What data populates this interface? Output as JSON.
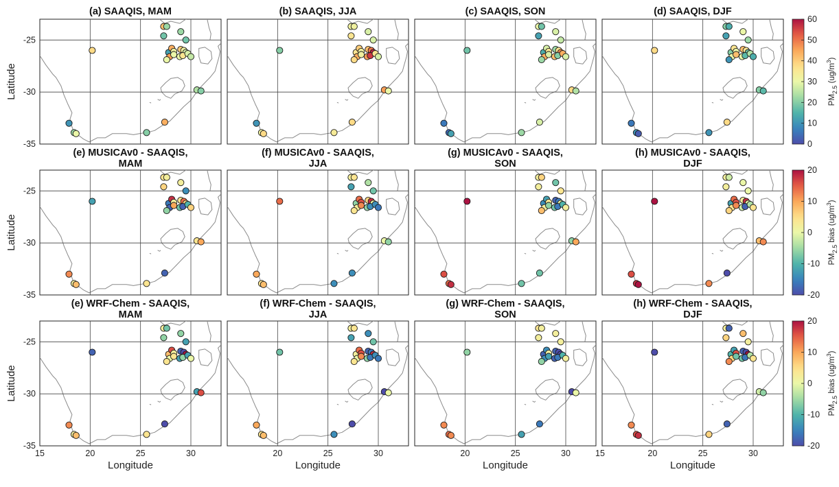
{
  "map": {
    "type": "map-panels",
    "xlim": [
      15,
      33
    ],
    "ylim": [
      -35,
      -23
    ],
    "x_ticks": [
      15,
      20,
      25,
      30
    ],
    "y_ticks": [
      -25,
      -30,
      -35
    ],
    "x_tick_labels": [
      "15",
      "20",
      "25",
      "30"
    ],
    "y_tick_labels": [
      "-25",
      "-30",
      "-35"
    ],
    "last_x_tick_label": "15",
    "xlabel": "Longitude",
    "ylabel": "Latitude",
    "rows": [
      {
        "titles": [
          "(a) SAAQIS, MAM",
          "(b) SAAQIS, JJA",
          "(c) SAAQIS, SON",
          "(d) SAAQIS, DJF"
        ],
        "colorbar": {
          "min": 0,
          "max": 60,
          "ticks": [
            "60",
            "50",
            "40",
            "30",
            "20",
            "10",
            "0"
          ],
          "label": "PM2.5 (ug/m3)"
        }
      },
      {
        "titles": [
          [
            "(e) MUSICAv0 - SAAQIS,",
            "MAM"
          ],
          [
            "(f) MUSICAv0 - SAAQIS,",
            "JJA"
          ],
          [
            "(g) MUSICAv0 - SAAQIS,",
            "SON"
          ],
          [
            "(h) MUSICAv0 - SAAQIS,",
            "DJF"
          ]
        ],
        "colorbar": {
          "min": -20,
          "max": 20,
          "ticks": [
            "20",
            "10",
            "0",
            "-10",
            "-20"
          ],
          "label": "PM2.5 bias (ug/m3)"
        }
      },
      {
        "titles": [
          [
            "(e) WRF-Chem - SAAQIS,",
            "MAM"
          ],
          [
            "(f) WRF-Chem - SAAQIS,",
            "JJA"
          ],
          [
            "(g) WRF-Chem - SAAQIS,",
            "SON"
          ],
          [
            "(h) WRF-Chem - SAAQIS,",
            "DJF"
          ]
        ],
        "colorbar": {
          "min": -20,
          "max": 20,
          "ticks": [
            "20",
            "10",
            "0",
            "-10",
            "-20"
          ],
          "label": "PM2.5 bias (ug/m3)"
        }
      }
    ],
    "sites": [
      {
        "lon": 27.3,
        "lat": -23.7
      },
      {
        "lon": 27.6,
        "lat": -23.7
      },
      {
        "lon": 29.0,
        "lat": -24.2
      },
      {
        "lon": 27.3,
        "lat": -24.6
      },
      {
        "lon": 29.5,
        "lat": -25.0
      },
      {
        "lon": 20.2,
        "lat": -26.0
      },
      {
        "lon": 27.8,
        "lat": -26.2
      },
      {
        "lon": 28.1,
        "lat": -25.8
      },
      {
        "lon": 28.3,
        "lat": -26.1
      },
      {
        "lon": 29.0,
        "lat": -25.9
      },
      {
        "lon": 29.3,
        "lat": -26.0
      },
      {
        "lon": 29.5,
        "lat": -26.2
      },
      {
        "lon": 27.9,
        "lat": -26.6
      },
      {
        "lon": 28.3,
        "lat": -26.4
      },
      {
        "lon": 28.9,
        "lat": -26.6
      },
      {
        "lon": 29.2,
        "lat": -26.5
      },
      {
        "lon": 27.6,
        "lat": -26.9
      },
      {
        "lon": 29.7,
        "lat": -26.3
      },
      {
        "lon": 30.0,
        "lat": -26.6
      },
      {
        "lon": 30.6,
        "lat": -29.8
      },
      {
        "lon": 31.0,
        "lat": -29.9
      },
      {
        "lon": 17.9,
        "lat": -33.0
      },
      {
        "lon": 18.4,
        "lat": -33.9
      },
      {
        "lon": 18.6,
        "lat": -34.0
      },
      {
        "lon": 25.6,
        "lat": -33.9
      },
      {
        "lon": 27.4,
        "lat": -32.9
      }
    ],
    "panel_values": [
      [
        42,
        22,
        22,
        18,
        18,
        38,
        12,
        44,
        32,
        40,
        32,
        28,
        46,
        30,
        30,
        36,
        30,
        28,
        26,
        24,
        20,
        10,
        22,
        30,
        20,
        44
      ],
      [
        32,
        32,
        28,
        36,
        28,
        20,
        36,
        40,
        32,
        42,
        50,
        58,
        44,
        32,
        46,
        56,
        38,
        36,
        28,
        46,
        30,
        10,
        32,
        38,
        34,
        38
      ],
      [
        30,
        18,
        28,
        12,
        26,
        18,
        14,
        28,
        36,
        22,
        36,
        48,
        44,
        28,
        42,
        20,
        22,
        44,
        28,
        38,
        24,
        6,
        4,
        12,
        22,
        28
      ],
      [
        20,
        14,
        30,
        12,
        22,
        38,
        20,
        36,
        30,
        42,
        36,
        18,
        30,
        42,
        30,
        16,
        10,
        24,
        14,
        20,
        16,
        6,
        10,
        2,
        10,
        38
      ],
      [
        4,
        2,
        2,
        6,
        -14,
        -12,
        -16,
        18,
        2,
        4,
        14,
        6,
        -18,
        10,
        -8,
        -18,
        -6,
        -10,
        6,
        4,
        10,
        12,
        2,
        8,
        4,
        -18
      ],
      [
        2,
        4,
        -4,
        -12,
        -8,
        14,
        -6,
        14,
        16,
        6,
        18,
        0,
        2,
        12,
        -6,
        -14,
        4,
        -14,
        -16,
        0,
        -6,
        10,
        4,
        8,
        -14,
        -14
      ],
      [
        2,
        6,
        -8,
        2,
        4,
        20,
        -14,
        -12,
        4,
        -18,
        -16,
        0,
        2,
        -6,
        -8,
        -16,
        8,
        -10,
        2,
        -6,
        10,
        16,
        14,
        18,
        -8,
        -8
      ],
      [
        2,
        -2,
        0,
        2,
        0,
        20,
        -12,
        14,
        16,
        2,
        18,
        0,
        4,
        12,
        -2,
        -18,
        6,
        -4,
        4,
        8,
        12,
        16,
        18,
        20,
        12,
        -20
      ],
      [
        2,
        -8,
        -6,
        -6,
        -12,
        -18,
        8,
        16,
        2,
        -18,
        -20,
        20,
        0,
        4,
        -12,
        -6,
        4,
        -12,
        0,
        -12,
        16,
        12,
        2,
        8,
        4,
        -20
      ],
      [
        2,
        4,
        -14,
        -12,
        -8,
        -8,
        2,
        14,
        16,
        -18,
        -16,
        18,
        0,
        12,
        -6,
        -16,
        4,
        -14,
        -16,
        -20,
        0,
        10,
        4,
        8,
        -14,
        -20
      ],
      [
        4,
        2,
        2,
        2,
        2,
        -6,
        -18,
        -14,
        2,
        -18,
        -20,
        -20,
        -14,
        -12,
        -18,
        -16,
        -6,
        -10,
        2,
        -20,
        0,
        12,
        14,
        12,
        -12,
        -16
      ],
      [
        2,
        -18,
        8,
        6,
        2,
        -20,
        -10,
        -12,
        16,
        -18,
        -20,
        20,
        6,
        -8,
        -8,
        -16,
        12,
        -4,
        4,
        -2,
        -6,
        12,
        16,
        18,
        6,
        -18
      ]
    ]
  }
}
